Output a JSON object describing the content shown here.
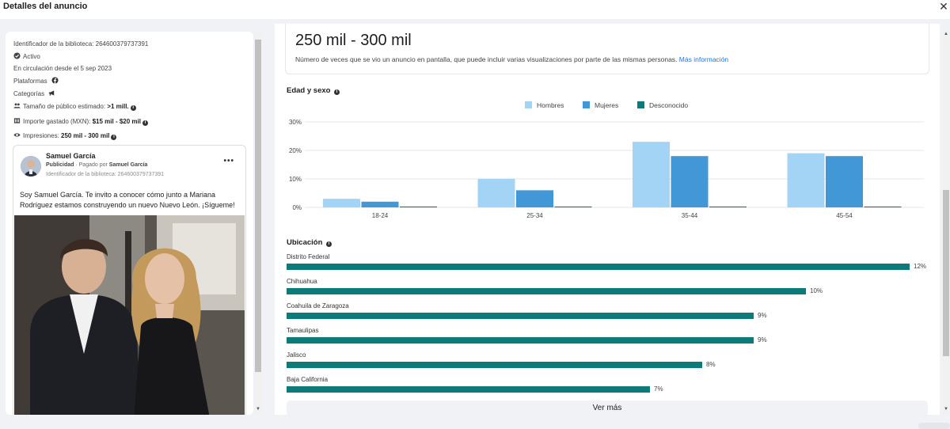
{
  "modal": {
    "title": "Detalles del anuncio",
    "close_icon": "close-icon"
  },
  "ad_meta": {
    "library_id": "Identificador de la biblioteca: 264600379737391",
    "status": "Activo",
    "running_since": "En circulación desde el 5 sep 2023",
    "platforms_label": "Plataformas",
    "categories_label": "Categorías",
    "audience_label": "Tamaño de público estimado:",
    "audience_value": ">1 mill.",
    "spend_label": "Importe gastado (MXN):",
    "spend_value": "$15 mil - $20 mil",
    "impressions_label": "Impresiones:",
    "impressions_value": "250 mil - 300 mil"
  },
  "ad_card": {
    "name": "Samuel García",
    "sponsored": "Publicidad",
    "paid_by_prefix": " · Pagado por ",
    "paid_by": "Samuel García",
    "library_id": "Identificador de la biblioteca: 264600379737391",
    "more": "•••",
    "text": "Soy Samuel García. Te invito a conocer cómo junto a Mariana Rodríguez estamos construyendo un nuevo Nuevo León. ¡Sígueme!"
  },
  "impressions": {
    "range": "250 mil - 300 mil",
    "description": "Número de veces que se vio un anuncio en pantalla, que puede incluir varias visualizaciones por parte de las mismas personas.",
    "more_info": "Más información"
  },
  "age_sex": {
    "title": "Edad y sexo",
    "colors": {
      "Hombres": "#a3d4f5",
      "Mujeres": "#4297d7",
      "Desconocido": "#0b7a78"
    }
  },
  "chart_data": {
    "type": "bar",
    "title": "Edad y sexo",
    "categories": [
      "18-24",
      "25-34",
      "35-44",
      "45-54"
    ],
    "series": [
      {
        "name": "Hombres",
        "values": [
          3,
          10,
          23,
          19
        ]
      },
      {
        "name": "Mujeres",
        "values": [
          2,
          6,
          18,
          18
        ]
      },
      {
        "name": "Desconocido",
        "values": [
          0.3,
          0.3,
          0.3,
          0.3
        ]
      }
    ],
    "yticks": [
      "0%",
      "10%",
      "20%",
      "30%"
    ],
    "ylim": [
      0,
      30
    ],
    "legend": "top-center",
    "grid": true
  },
  "location": {
    "title": "Ubicación",
    "bar_color": "#0b7a78",
    "max_value": 12,
    "items": [
      {
        "name": "Distrito Federal",
        "value": 12,
        "label": "12%"
      },
      {
        "name": "Chihuahua",
        "value": 10,
        "label": "10%"
      },
      {
        "name": "Coahuila de Zaragoza",
        "value": 9,
        "label": "9%"
      },
      {
        "name": "Tamaulipas",
        "value": 9,
        "label": "9%"
      },
      {
        "name": "Jalisco",
        "value": 8,
        "label": "8%"
      },
      {
        "name": "Baja California",
        "value": 7,
        "label": "7%"
      }
    ],
    "see_more": "Ver más"
  }
}
